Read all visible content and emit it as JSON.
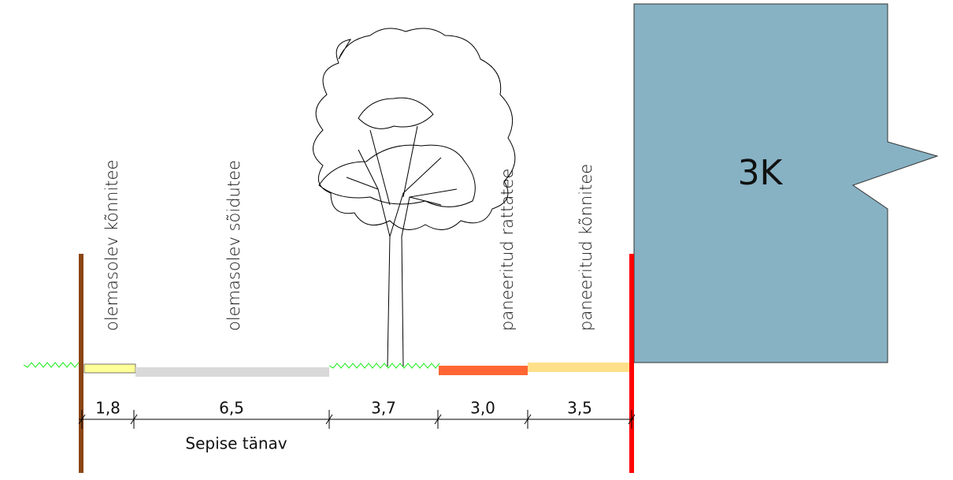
{
  "building": {
    "label": "3K"
  },
  "street_name": "Sepise tänav",
  "segments": [
    {
      "label": "olemasolev kõnnitee",
      "width": "1,8"
    },
    {
      "label": "olemasolev sõidutee",
      "width": "6,5"
    },
    {
      "width": "3,7"
    },
    {
      "label": "paneeritud rattatee",
      "width": "3,0"
    },
    {
      "label": "paneeritud kõnnitee",
      "width": "3,5"
    }
  ]
}
